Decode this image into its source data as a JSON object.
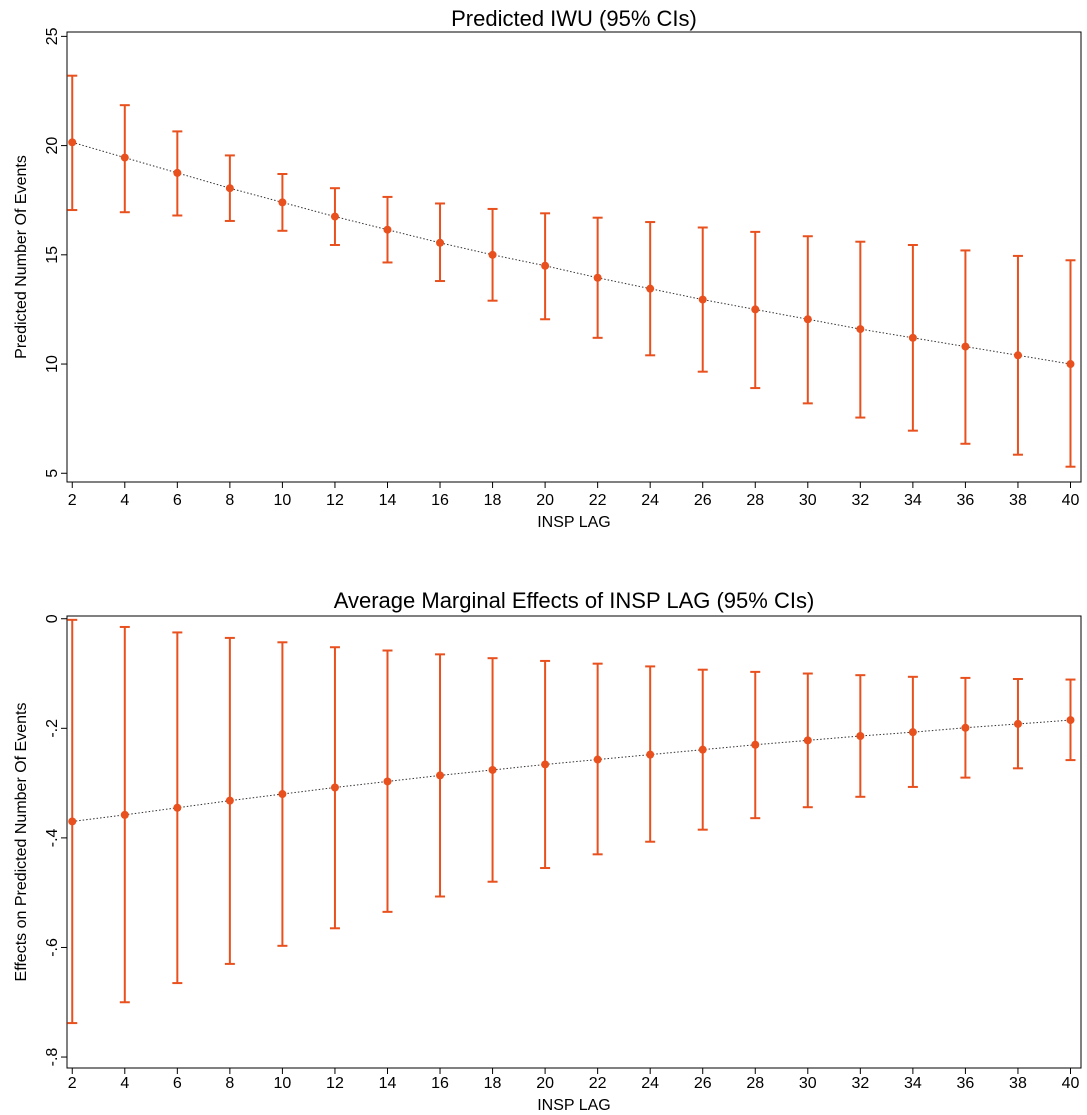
{
  "chart_data": [
    {
      "type": "scatter",
      "title": "Predicted IWU (95% CIs)",
      "xlabel": "INSP LAG",
      "ylabel": "Predicted Number Of Events",
      "x": [
        2,
        4,
        6,
        8,
        10,
        12,
        14,
        16,
        18,
        20,
        22,
        24,
        26,
        28,
        30,
        32,
        34,
        36,
        38,
        40
      ],
      "x_tick_labels": [
        "2",
        "4",
        "6",
        "8",
        "10",
        "12",
        "14",
        "16",
        "18",
        "20",
        "22",
        "24",
        "26",
        "28",
        "30",
        "32",
        "34",
        "36",
        "38",
        "40"
      ],
      "y_ticks": [
        5,
        10,
        15,
        20,
        25
      ],
      "y_tick_labels": [
        "5",
        "10",
        "15",
        "20",
        "25"
      ],
      "xlim": [
        1.8,
        40.4
      ],
      "ylim": [
        4.6,
        25.2
      ],
      "series": [
        {
          "estimate": [
            20.15,
            19.45,
            18.75,
            18.05,
            17.4,
            16.75,
            16.15,
            15.55,
            15.0,
            14.5,
            13.95,
            13.45,
            12.95,
            12.5,
            12.05,
            11.6,
            11.2,
            10.8,
            10.4,
            10.0
          ],
          "lower": [
            17.05,
            16.95,
            16.8,
            16.55,
            16.1,
            15.45,
            14.65,
            13.8,
            12.9,
            12.05,
            11.2,
            10.4,
            9.65,
            8.9,
            8.2,
            7.55,
            6.95,
            6.35,
            5.85,
            5.3
          ],
          "upper": [
            23.2,
            21.85,
            20.65,
            19.55,
            18.7,
            18.05,
            17.65,
            17.35,
            17.1,
            16.9,
            16.7,
            16.5,
            16.25,
            16.05,
            15.85,
            15.6,
            15.45,
            15.2,
            14.95,
            14.75
          ]
        }
      ],
      "colors": {
        "series": "#e8501e",
        "trend": "#333333"
      }
    },
    {
      "type": "scatter",
      "title": "Average Marginal Effects of INSP LAG (95% CIs)",
      "xlabel": "INSP LAG",
      "ylabel": "Effects on Predicted Number Of Events",
      "x": [
        2,
        4,
        6,
        8,
        10,
        12,
        14,
        16,
        18,
        20,
        22,
        24,
        26,
        28,
        30,
        32,
        34,
        36,
        38,
        40
      ],
      "x_tick_labels": [
        "2",
        "4",
        "6",
        "8",
        "10",
        "12",
        "14",
        "16",
        "18",
        "20",
        "22",
        "24",
        "26",
        "28",
        "30",
        "32",
        "34",
        "36",
        "38",
        "40"
      ],
      "y_ticks": [
        -0.8,
        -0.6,
        -0.4,
        -0.2,
        0
      ],
      "y_tick_labels": [
        "-.8",
        "-.6",
        "-.4",
        "-.2",
        "0"
      ],
      "xlim": [
        1.8,
        40.4
      ],
      "ylim": [
        -0.82,
        0.005
      ],
      "series": [
        {
          "estimate": [
            -0.37,
            -0.358,
            -0.345,
            -0.332,
            -0.32,
            -0.308,
            -0.297,
            -0.286,
            -0.276,
            -0.266,
            -0.257,
            -0.248,
            -0.239,
            -0.23,
            -0.222,
            -0.214,
            -0.207,
            -0.199,
            -0.192,
            -0.185
          ],
          "lower": [
            -0.738,
            -0.7,
            -0.665,
            -0.63,
            -0.597,
            -0.565,
            -0.535,
            -0.507,
            -0.48,
            -0.455,
            -0.43,
            -0.407,
            -0.385,
            -0.364,
            -0.344,
            -0.325,
            -0.307,
            -0.29,
            -0.273,
            -0.258
          ],
          "upper": [
            -0.002,
            -0.015,
            -0.025,
            -0.035,
            -0.043,
            -0.052,
            -0.058,
            -0.065,
            -0.072,
            -0.077,
            -0.082,
            -0.087,
            -0.093,
            -0.097,
            -0.1,
            -0.103,
            -0.106,
            -0.108,
            -0.11,
            -0.111
          ]
        }
      ],
      "colors": {
        "series": "#e8501e",
        "trend": "#333333"
      }
    }
  ]
}
